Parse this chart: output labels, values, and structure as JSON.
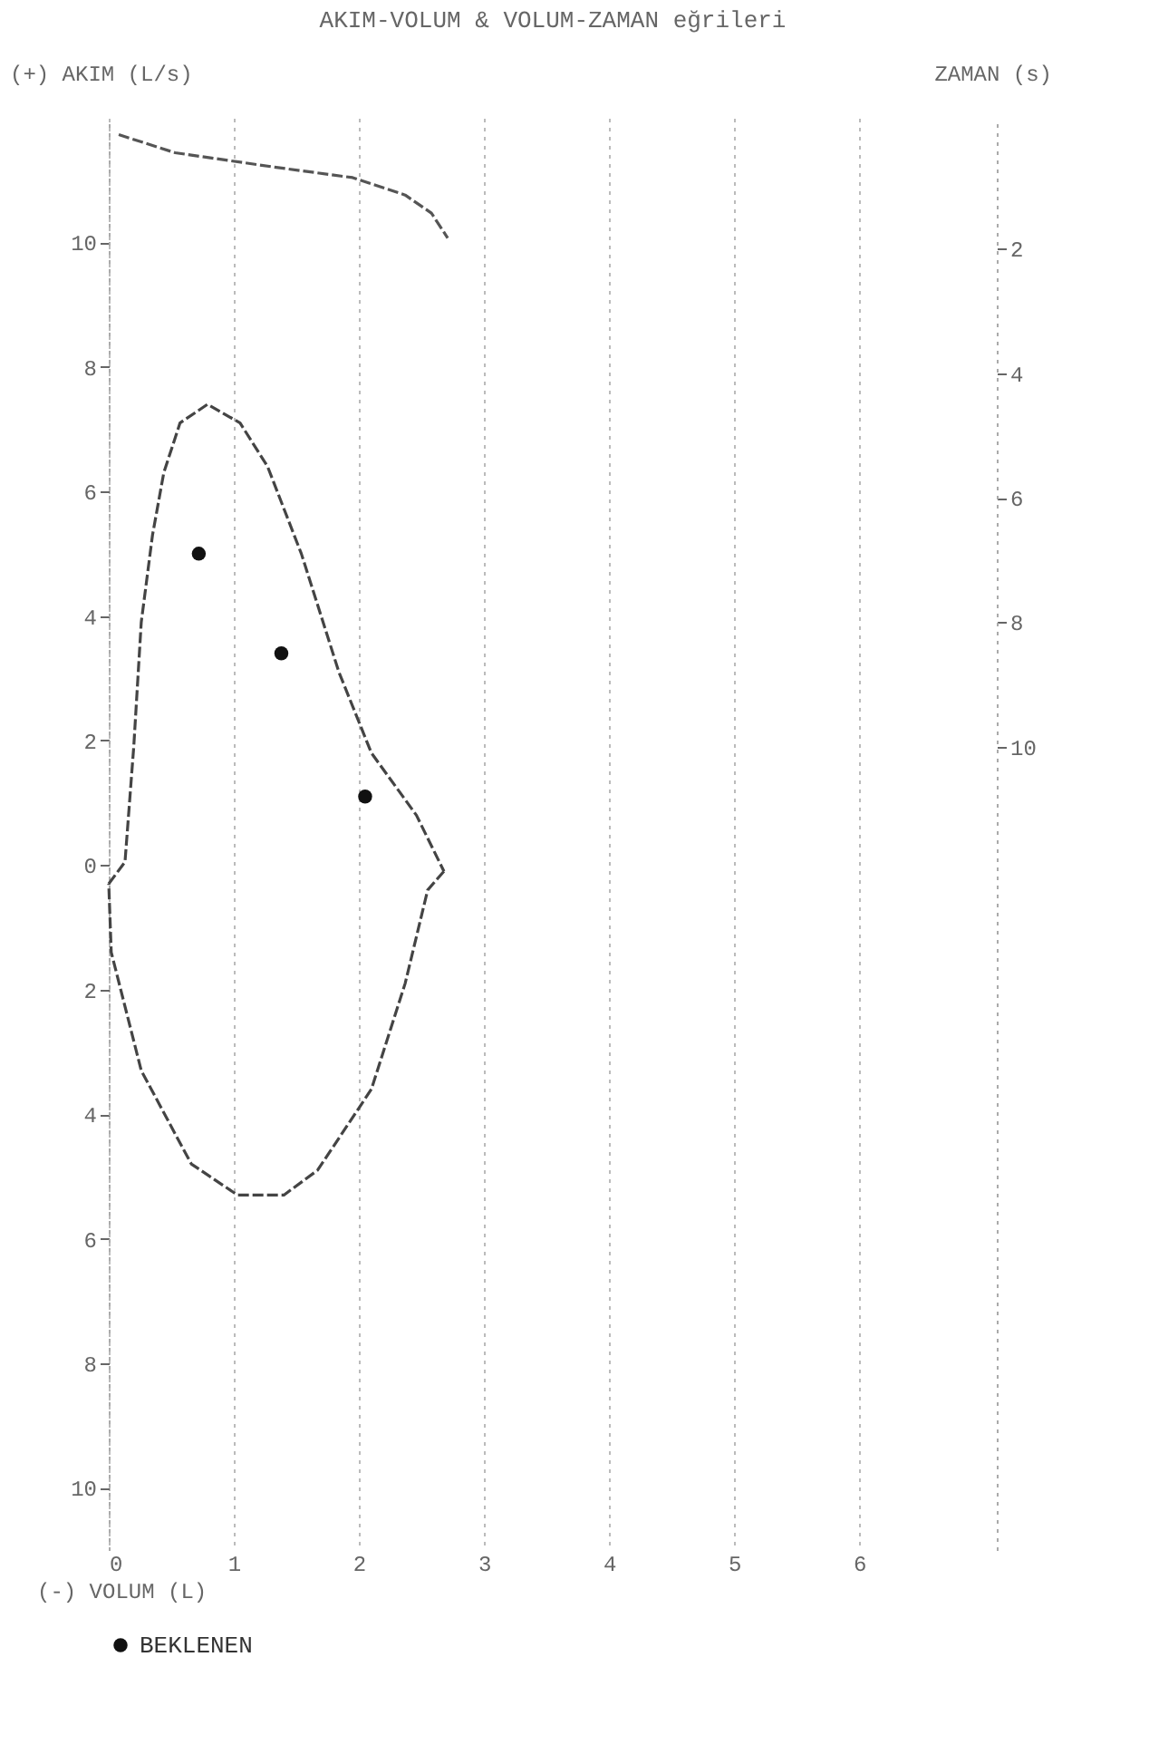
{
  "chart_data": {
    "type": "line",
    "title": "AKIM-VOLUM & VOLUM-ZAMAN eğrileri",
    "xlabel": "(-) VOLUM (L)",
    "ylabel": "(+) AKIM (L/s)",
    "y2label": "ZAMAN (s)",
    "xlim": [
      0,
      7.1
    ],
    "xticks": [
      0,
      1,
      2,
      3,
      4,
      5,
      6
    ],
    "ylim": [
      -11,
      12
    ],
    "yticks": [
      10,
      8,
      6,
      4,
      2,
      0,
      {
        "value": -2,
        "label": "2"
      },
      {
        "value": -4,
        "label": "4"
      },
      {
        "value": -6,
        "label": "6"
      },
      {
        "value": -8,
        "label": "8"
      },
      {
        "value": -10,
        "label": "10"
      }
    ],
    "y2lim": [
      22.9,
      -0.1
    ],
    "y2ticks": [
      2,
      4,
      6,
      8,
      10
    ],
    "grid": "x",
    "legend": "bottom",
    "series": [
      {
        "color": "#444444",
        "line_style": "dashed",
        "x": [
          0.0,
          0.13,
          0.2,
          0.26,
          0.35,
          0.44,
          0.57,
          0.79,
          1.05,
          1.27,
          1.54,
          1.84,
          2.1,
          2.46,
          2.68
        ],
        "values": [
          -0.3,
          0.05,
          1.9,
          3.9,
          5.3,
          6.3,
          7.1,
          7.4,
          7.1,
          6.4,
          5.0,
          3.1,
          1.8,
          0.8,
          -0.1
        ]
      },
      {
        "color": "#444444",
        "line_style": "dashed",
        "x": [
          2.68,
          2.55,
          2.37,
          2.1,
          1.67,
          1.4,
          1.03,
          0.66,
          0.26,
          0.02,
          0.0
        ],
        "values": [
          -0.1,
          -0.4,
          -1.9,
          -3.6,
          -4.9,
          -5.3,
          -5.3,
          -4.8,
          -3.3,
          -1.4,
          -0.3
        ]
      },
      {
        "axis": "y2",
        "color": "#555555",
        "line_style": "dashed",
        "x": [
          0.08,
          0.53,
          1.32,
          1.95,
          2.37,
          2.58,
          2.71
        ],
        "values": [
          0.17,
          0.46,
          0.69,
          0.86,
          1.14,
          1.43,
          1.83
        ]
      },
      {
        "type": "scatter",
        "name": "BEKLENEN",
        "color": "#111111",
        "marker": "circle",
        "x": [
          0.72,
          1.38,
          2.05
        ],
        "values": [
          5.0,
          3.4,
          1.1
        ]
      }
    ]
  }
}
